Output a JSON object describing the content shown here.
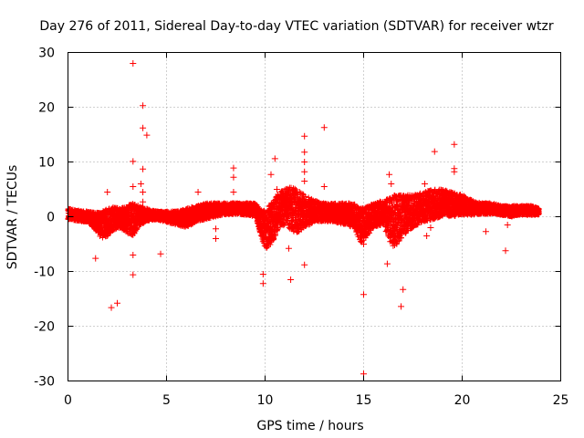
{
  "chart_data": {
    "type": "scatter",
    "title": "Day 276 of 2011, Sidereal Day-to-day VTEC variation (SDTVAR) for receiver wtzr",
    "xlabel": "GPS time / hours",
    "ylabel": "SDTVAR / TECUs",
    "xlim": [
      0,
      25
    ],
    "ylim": [
      -30,
      30
    ],
    "xticks": [
      "0",
      "5",
      "10",
      "15",
      "20",
      "25"
    ],
    "yticks": [
      "-30",
      "-20",
      "-10",
      "0",
      "10",
      "20",
      "30"
    ],
    "grid": true,
    "marker": "+",
    "color": "#ff0000",
    "series": [
      {
        "name": "SDTVAR",
        "band": {
          "x": [
            0.0,
            0.5,
            1.0,
            1.4,
            1.7,
            2.0,
            2.3,
            2.6,
            3.0,
            3.3,
            3.6,
            4.0,
            4.5,
            5.0,
            5.5,
            6.0,
            6.5,
            7.0,
            7.5,
            8.0,
            8.5,
            9.0,
            9.5,
            9.9,
            10.1,
            10.4,
            10.7,
            11.0,
            11.3,
            11.6,
            12.0,
            12.5,
            13.0,
            13.5,
            14.0,
            14.5,
            14.9,
            15.2,
            15.5,
            16.0,
            16.3,
            16.6,
            17.0,
            17.5,
            18.0,
            18.5,
            19.0,
            19.5,
            20.0,
            20.5,
            21.0,
            21.5,
            22.0,
            22.5,
            23.0,
            23.5,
            23.9
          ],
          "low": [
            -0.5,
            -0.8,
            -1.0,
            -2.5,
            -4.0,
            -3.5,
            -2.5,
            -2.0,
            -3.0,
            -3.5,
            -1.8,
            -0.8,
            -0.5,
            -1.0,
            -1.5,
            -2.0,
            -1.0,
            -0.5,
            0.0,
            0.3,
            0.5,
            0.3,
            0.0,
            -5.0,
            -6.0,
            -4.5,
            -2.0,
            -1.5,
            -2.5,
            -3.0,
            -2.0,
            -1.0,
            -0.8,
            -1.0,
            -1.5,
            -2.0,
            -5.0,
            -3.5,
            -2.0,
            -1.5,
            -4.5,
            -5.5,
            -3.5,
            -2.0,
            -1.0,
            -0.5,
            0.0,
            0.0,
            0.3,
            0.3,
            0.5,
            0.5,
            0.3,
            0.0,
            0.3,
            0.3,
            0.3
          ],
          "high": [
            1.5,
            1.2,
            1.0,
            0.8,
            1.0,
            1.5,
            2.0,
            1.5,
            2.0,
            2.5,
            2.0,
            1.5,
            1.0,
            1.0,
            1.0,
            1.5,
            2.0,
            2.5,
            2.5,
            2.5,
            2.5,
            2.5,
            2.5,
            1.0,
            1.5,
            3.0,
            4.5,
            5.0,
            5.5,
            5.0,
            4.0,
            3.0,
            2.5,
            2.5,
            2.5,
            2.5,
            1.5,
            2.0,
            2.5,
            3.0,
            3.5,
            4.0,
            4.0,
            4.0,
            4.5,
            5.0,
            5.0,
            4.5,
            4.0,
            3.0,
            2.5,
            2.5,
            2.0,
            2.0,
            2.0,
            2.0,
            1.5
          ]
        },
        "outliers": [
          [
            3.3,
            28.0
          ],
          [
            3.8,
            20.3
          ],
          [
            3.8,
            16.2
          ],
          [
            4.0,
            14.9
          ],
          [
            3.3,
            10.1
          ],
          [
            3.8,
            8.7
          ],
          [
            3.7,
            6.0
          ],
          [
            3.3,
            5.5
          ],
          [
            3.8,
            4.5
          ],
          [
            2.0,
            4.5
          ],
          [
            3.8,
            2.7
          ],
          [
            6.6,
            4.5
          ],
          [
            4.7,
            -6.8
          ],
          [
            1.4,
            -7.6
          ],
          [
            2.0,
            -3.5
          ],
          [
            3.3,
            -10.6
          ],
          [
            3.3,
            -7.0
          ],
          [
            2.2,
            -16.6
          ],
          [
            2.5,
            -15.8
          ],
          [
            7.5,
            -4.0
          ],
          [
            7.5,
            -2.2
          ],
          [
            8.4,
            8.9
          ],
          [
            8.4,
            7.2
          ],
          [
            8.4,
            4.5
          ],
          [
            9.9,
            -10.5
          ],
          [
            9.9,
            -12.2
          ],
          [
            10.5,
            10.6
          ],
          [
            10.3,
            7.7
          ],
          [
            10.6,
            5.0
          ],
          [
            11.2,
            -5.8
          ],
          [
            11.3,
            -11.5
          ],
          [
            12.0,
            14.7
          ],
          [
            12.0,
            11.8
          ],
          [
            12.0,
            10.0
          ],
          [
            12.0,
            8.2
          ],
          [
            12.0,
            6.5
          ],
          [
            13.0,
            16.3
          ],
          [
            13.0,
            5.5
          ],
          [
            12.0,
            -8.8
          ],
          [
            15.0,
            -14.2
          ],
          [
            15.0,
            -28.7
          ],
          [
            15.0,
            -5.0
          ],
          [
            16.2,
            -8.6
          ],
          [
            16.3,
            7.7
          ],
          [
            16.4,
            6.0
          ],
          [
            16.9,
            -16.4
          ],
          [
            17.0,
            -13.3
          ],
          [
            16.5,
            -5.3
          ],
          [
            18.1,
            6.0
          ],
          [
            18.2,
            -3.5
          ],
          [
            18.4,
            -2.0
          ],
          [
            18.6,
            11.9
          ],
          [
            19.6,
            13.2
          ],
          [
            19.6,
            8.8
          ],
          [
            19.6,
            8.2
          ],
          [
            21.2,
            -2.7
          ],
          [
            22.2,
            -6.2
          ],
          [
            22.3,
            -1.5
          ]
        ]
      }
    ]
  }
}
